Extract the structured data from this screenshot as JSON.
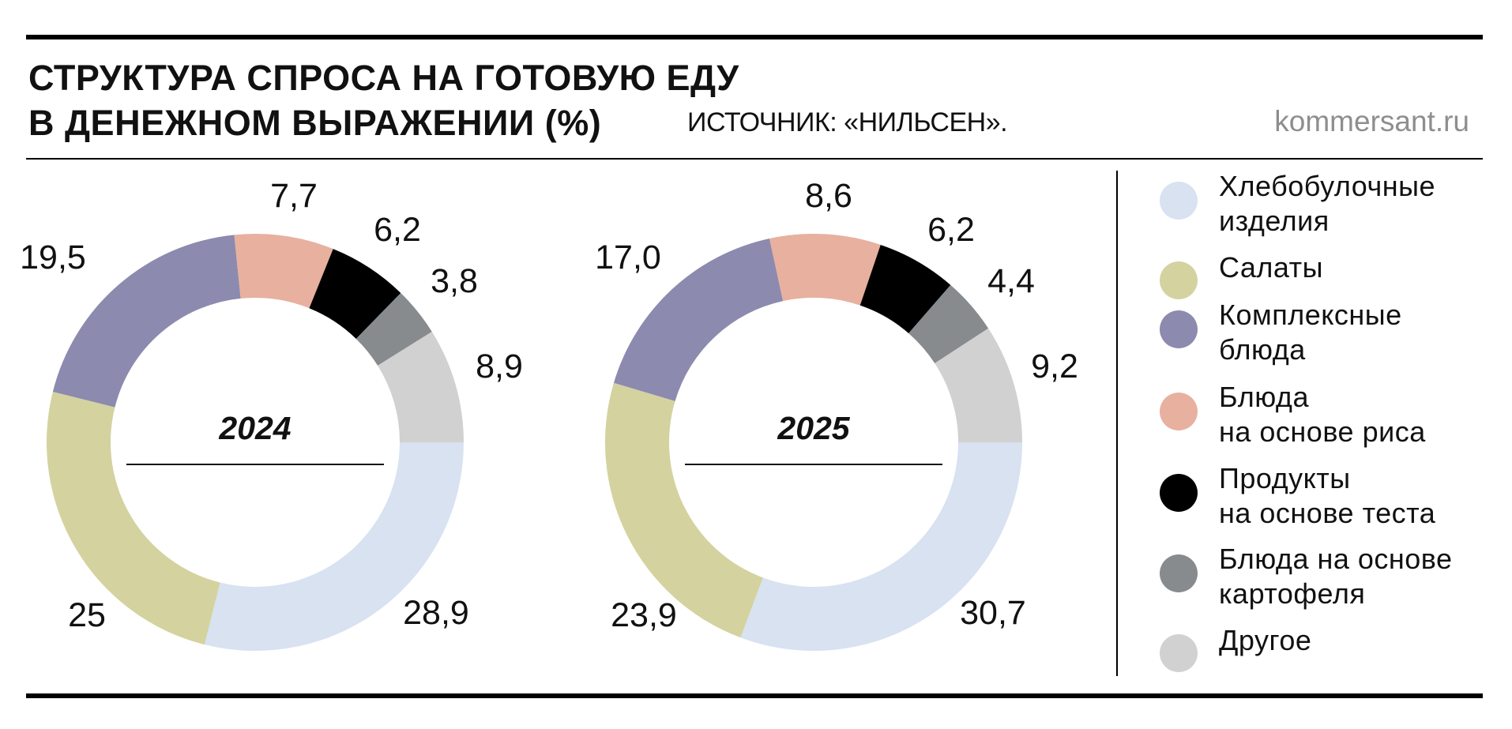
{
  "header": {
    "title_line1": "СТРУКТУРА СПРОСА НА ГОТОВУЮ ЕДУ",
    "title_line2": "В ДЕНЕЖНОМ ВЫРАЖЕНИИ (%)",
    "source": "ИСТОЧНИК: «НИЛЬСЕН».",
    "site": "kommersant.ru"
  },
  "legend": [
    {
      "lines": [
        "Хлебобулочные",
        "изделия"
      ],
      "color": "#d8e2f1"
    },
    {
      "lines": [
        "Салаты"
      ],
      "color": "#d4d29f"
    },
    {
      "lines": [
        "Комплексные",
        "блюда"
      ],
      "color": "#8c8aae"
    },
    {
      "lines": [
        "Блюда",
        "на основе риса"
      ],
      "color": "#e8b09f"
    },
    {
      "lines": [
        "Продукты",
        "на основе теста"
      ],
      "color": "#000000"
    },
    {
      "lines": [
        "Блюда на основе",
        "картофеля"
      ],
      "color": "#888b8e"
    },
    {
      "lines": [
        "Другое"
      ],
      "color": "#d1d1d1"
    }
  ],
  "chart_data": [
    {
      "type": "pie",
      "subtype": "donut",
      "center_label": "2024",
      "categories": [
        "Хлебобулочные изделия",
        "Салаты",
        "Комплексные блюда",
        "Блюда на основе риса",
        "Продукты на основе теста",
        "Блюда на основе картофеля",
        "Другое"
      ],
      "values": [
        28.9,
        25,
        19.5,
        7.7,
        6.2,
        3.8,
        8.9
      ],
      "labels": [
        "28,9",
        "25",
        "19,5",
        "7,7",
        "6,2",
        "3,8",
        "8,9"
      ]
    },
    {
      "type": "pie",
      "subtype": "donut",
      "center_label": "2025",
      "categories": [
        "Хлебобулочные изделия",
        "Салаты",
        "Комплексные блюда",
        "Блюда на основе риса",
        "Продукты на основе теста",
        "Блюда на основе картофеля",
        "Другое"
      ],
      "values": [
        30.7,
        23.9,
        17.0,
        8.6,
        6.2,
        4.4,
        9.2
      ],
      "labels": [
        "30,7",
        "23,9",
        "17,0",
        "8,6",
        "6,2",
        "4,4",
        "9,2"
      ]
    }
  ]
}
